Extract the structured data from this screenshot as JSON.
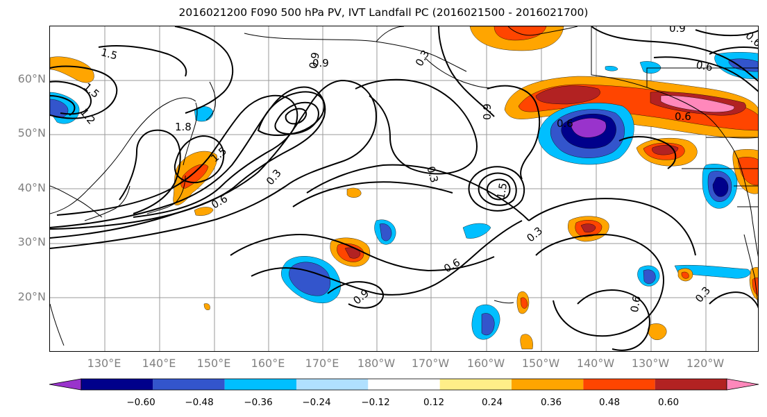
{
  "title": "2016021200 F090 500 hPa PV, IVT Landfall PC (2016021500 - 2016021700)",
  "lat_labels": [
    "60°N",
    "50°N",
    "40°N",
    "30°N",
    "20°N"
  ],
  "lon_labels": [
    "130°E",
    "140°E",
    "150°E",
    "160°E",
    "170°E",
    "180°W",
    "170°W",
    "160°W",
    "150°W",
    "140°W",
    "130°W",
    "120°W"
  ],
  "contour_labels": [
    "1.5",
    "1.5",
    "0.9",
    "0.9",
    "0.3",
    "0.9",
    "0.6",
    "1.8",
    "1.5",
    "0.3",
    "0.6",
    "0.3",
    "0.9",
    "1.5",
    "0.6",
    "0.9",
    "0.3",
    "0.6",
    "0.3",
    "0.6",
    "0.6",
    "0.6",
    "1.2"
  ],
  "colorbar": {
    "tick_labels": [
      "−0.60",
      "−0.48",
      "−0.36",
      "−0.24",
      "−0.12",
      "0.12",
      "0.24",
      "0.36",
      "0.48",
      "0.60"
    ],
    "colors": [
      "#9933cc",
      "#00008b",
      "#3355cc",
      "#00bfff",
      "#b0e0ff",
      "#ffffff",
      "#ffee88",
      "#ffa500",
      "#ff4500",
      "#b22222",
      "#ff88bb"
    ]
  },
  "fill_colors": {
    "pos1": "#ffee88",
    "pos2": "#ffa500",
    "pos3": "#ff4500",
    "pos4": "#b22222",
    "pos5": "#ff88bb",
    "neg1": "#b0e0ff",
    "neg2": "#00bfff",
    "neg3": "#3355cc",
    "neg4": "#00008b",
    "neg5": "#9933cc"
  }
}
